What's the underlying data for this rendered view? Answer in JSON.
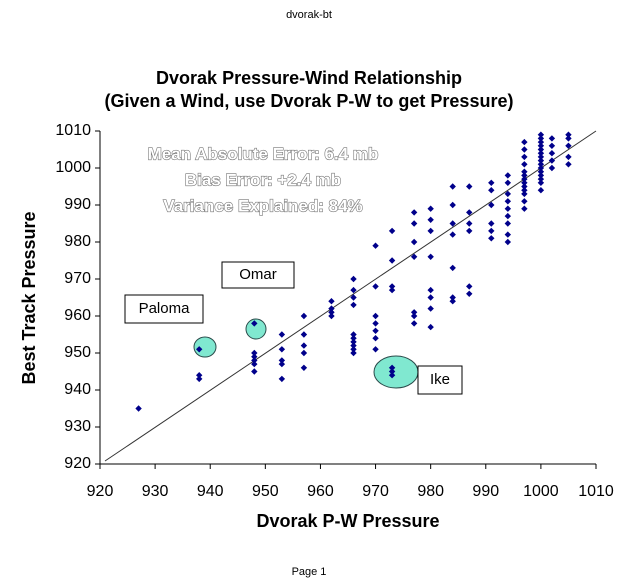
{
  "header": "dvorak-bt",
  "footer": "Page 1",
  "chart_data": {
    "type": "scatter",
    "title": "Dvorak Pressure-Wind Relationship",
    "subtitle": "(Given a Wind, use Dvorak P-W to get Pressure)",
    "x_label": "Dvorak P-W Pressure",
    "y_label": "Best Track Pressure",
    "stats": [
      "Mean Absolute Error:  6.4 mb",
      "Bias Error:  +2.4 mb",
      "Variance Explained:  84%"
    ],
    "storms": [
      "Omar",
      "Paloma",
      "Ike"
    ],
    "color": "#00008b",
    "xlim": [
      920,
      1010
    ],
    "ylim": [
      920,
      1010
    ],
    "xticks": [
      920,
      930,
      940,
      950,
      960,
      970,
      980,
      990,
      1000,
      1010
    ],
    "yticks": [
      920,
      930,
      940,
      950,
      960,
      970,
      980,
      990,
      1000,
      1010
    ],
    "x": [
      927,
      938,
      938,
      938,
      948,
      948,
      948,
      948,
      948,
      948,
      953,
      953,
      953,
      953,
      953,
      957,
      957,
      957,
      957,
      957,
      962,
      962,
      962,
      962,
      966,
      966,
      966,
      966,
      966,
      966,
      966,
      966,
      966,
      966,
      970,
      970,
      970,
      970,
      970,
      970,
      970,
      973,
      973,
      973,
      973,
      973,
      973,
      973,
      977,
      977,
      977,
      977,
      977,
      977,
      977,
      980,
      980,
      980,
      980,
      980,
      980,
      980,
      980,
      984,
      984,
      984,
      984,
      984,
      984,
      984,
      987,
      987,
      987,
      987,
      987,
      987,
      991,
      991,
      991,
      991,
      991,
      991,
      994,
      994,
      994,
      994,
      994,
      994,
      994,
      994,
      994,
      997,
      997,
      997,
      997,
      997,
      997,
      997,
      997,
      997,
      997,
      997,
      997,
      997,
      1000,
      1000,
      1000,
      1000,
      1000,
      1000,
      1000,
      1000,
      1000,
      1000,
      1000,
      1000,
      1000,
      1000,
      1000,
      1002,
      1002,
      1002,
      1002,
      1002,
      1005,
      1005,
      1005,
      1005,
      1005
    ],
    "values": [
      935,
      951,
      944,
      943,
      958,
      950,
      949,
      948,
      947,
      945,
      955,
      951,
      948,
      947,
      943,
      960,
      955,
      952,
      950,
      946,
      964,
      962,
      961,
      960,
      970,
      967,
      965,
      963,
      955,
      954,
      953,
      952,
      951,
      950,
      979,
      968,
      960,
      958,
      956,
      954,
      951,
      983,
      975,
      968,
      967,
      946,
      945,
      944,
      988,
      985,
      980,
      976,
      961,
      960,
      958,
      989,
      986,
      983,
      976,
      967,
      965,
      962,
      957,
      995,
      990,
      985,
      982,
      973,
      965,
      964,
      995,
      988,
      985,
      983,
      968,
      966,
      996,
      994,
      990,
      985,
      983,
      981,
      998,
      996,
      993,
      991,
      989,
      987,
      985,
      982,
      980,
      1007,
      1005,
      1003,
      1001,
      999,
      998,
      997,
      996,
      995,
      994,
      993,
      991,
      989,
      1009,
      1008,
      1007,
      1006,
      1005,
      1004,
      1003,
      1002,
      1001,
      1000,
      999,
      998,
      997,
      996,
      994,
      1008,
      1006,
      1004,
      1002,
      1000,
      1009,
      1008,
      1006,
      1003,
      1001
    ]
  }
}
